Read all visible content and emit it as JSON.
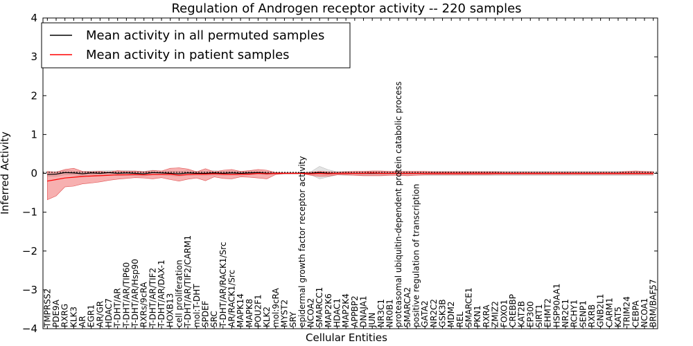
{
  "chart_data": {
    "type": "line",
    "title": "Regulation of Androgen receptor activity -- 220 samples",
    "xlabel": "Cellular Entities",
    "ylabel": "Inferred Activity",
    "ylim": [
      -4,
      4
    ],
    "yticks": [
      "4",
      "3",
      "2",
      "1",
      "0",
      "−1",
      "−2",
      "−3",
      "−4"
    ],
    "legend_position": "top-left",
    "grid": false,
    "categories": [
      "TMPRSS2",
      "PDE9A",
      "RXRG",
      "KLK3",
      "AR",
      "EGR1",
      "AR/GR",
      "HDAC7",
      "T-DHT/AR",
      "T-DHT/AR/TIP60",
      "T-DHT/AR/Hsp90",
      "RXRs/9cRA",
      "T-DHT/AR/TIF2",
      "T-DHT/AR/DAX-1",
      "HOXB13",
      "cell proliferation",
      "T-DHT/AR/TIF2/CARM1",
      "mol:T-DHT",
      "SPDEF",
      "SRC",
      "T-DHT/AR/RACK1/Src",
      "AR/RACK1/Src",
      "MAPK14",
      "MAPK8",
      "POU2F1",
      "KLK2",
      "mol:9cRA",
      "MYST2",
      "SRY",
      "epidermal growth factor receptor activity",
      "NCOA2",
      "SMARCC1",
      "MAP2K6",
      "HDAC1",
      "MAP2K4",
      "APPBP2",
      "DNAJA1",
      "JUN",
      "NR3C1",
      "NR0B1",
      "proteasomal ubiquitin-dependent protein catabolic process",
      "SMARCA2",
      "positive regulation of transcription",
      "GATA2",
      "NR2C2",
      "GSK3B",
      "MDM2",
      "REL",
      "SMARCE1",
      "PKN1",
      "RXRA",
      "ZMIZ2",
      "FOXO1",
      "CREBBP",
      "KAT2B",
      "EP300",
      "SIRT1",
      "EHMT2",
      "HSP90AA1",
      "NR2C1",
      "RCHY1",
      "SENP1",
      "RXRB",
      "GNB2L1",
      "CARM1",
      "KAT5",
      "TRIM24",
      "CEBPA",
      "NCOA1",
      "BRM/BAF57"
    ],
    "series": [
      {
        "name": "Mean activity in all permuted samples",
        "color": "#000000",
        "band_color": "#c8c8c8",
        "values": [
          -0.03,
          -0.02,
          0.02,
          0.01,
          -0.01,
          0.01,
          0.0,
          0.02,
          0.0,
          0.01,
          0.0,
          -0.01,
          0.02,
          0.01,
          0.0,
          -0.01,
          0.01,
          0.0,
          0.0,
          0.01,
          0.0,
          0.01,
          0.0,
          0.01,
          0.02,
          0.0,
          0.0,
          0.0,
          0.0,
          0.0,
          0.0,
          0.02,
          0.0,
          0.0,
          0.0,
          0.0,
          0.0,
          0.0,
          0.0,
          0.0,
          0.0,
          0.0,
          0.0,
          0.0,
          0.0,
          0.0,
          0.0,
          0.0,
          0.0,
          0.0,
          0.0,
          0.0,
          0.0,
          0.0,
          0.0,
          0.0,
          0.0,
          0.0,
          0.0,
          0.0,
          0.0,
          0.0,
          0.0,
          0.0,
          0.0,
          0.0,
          0.0,
          0.0,
          0.0,
          0.0
        ],
        "band_halfwidth": [
          0.05,
          0.06,
          0.06,
          0.05,
          0.06,
          0.05,
          0.06,
          0.05,
          0.06,
          0.06,
          0.06,
          0.06,
          0.06,
          0.05,
          0.06,
          0.06,
          0.06,
          0.05,
          0.05,
          0.06,
          0.05,
          0.05,
          0.05,
          0.05,
          0.04,
          0.04,
          0.02,
          0.01,
          0.01,
          0.01,
          0.04,
          0.16,
          0.09,
          0.04,
          0.05,
          0.05,
          0.05,
          0.05,
          0.05,
          0.05,
          0.05,
          0.05,
          0.05,
          0.05,
          0.05,
          0.05,
          0.05,
          0.05,
          0.05,
          0.05,
          0.05,
          0.05,
          0.05,
          0.05,
          0.05,
          0.05,
          0.05,
          0.05,
          0.05,
          0.05,
          0.05,
          0.05,
          0.05,
          0.05,
          0.05,
          0.05,
          0.05,
          0.05,
          0.05,
          0.05
        ]
      },
      {
        "name": "Mean activity in patient samples",
        "color": "#ff0000",
        "band_color": "#f07070",
        "values": [
          -0.2,
          -0.16,
          -0.12,
          -0.1,
          -0.08,
          -0.07,
          -0.06,
          -0.05,
          -0.04,
          -0.04,
          -0.03,
          -0.04,
          -0.03,
          -0.03,
          -0.02,
          -0.05,
          -0.03,
          -0.02,
          -0.02,
          -0.01,
          -0.02,
          -0.03,
          -0.02,
          -0.02,
          0.0,
          -0.01,
          0.0,
          0.0,
          0.0,
          0.0,
          -0.01,
          0.0,
          -0.01,
          0.0,
          0.0,
          0.0,
          0.0,
          0.01,
          0.0,
          0.0,
          0.0,
          0.0,
          0.0,
          0.0,
          0.0,
          0.0,
          0.0,
          0.0,
          0.0,
          0.0,
          0.0,
          0.0,
          0.0,
          0.0,
          0.0,
          0.0,
          0.0,
          0.0,
          0.0,
          0.0,
          0.0,
          0.0,
          0.0,
          0.0,
          0.0,
          0.0,
          0.0,
          0.0,
          0.0,
          0.0
        ],
        "band_upper": [
          0.05,
          0.03,
          0.1,
          0.13,
          0.05,
          0.04,
          0.05,
          0.03,
          0.07,
          0.05,
          0.06,
          0.04,
          0.07,
          0.06,
          0.13,
          0.14,
          0.11,
          0.04,
          0.12,
          0.04,
          0.08,
          0.1,
          0.05,
          0.07,
          0.1,
          0.08,
          0.02,
          0.01,
          0.01,
          0.01,
          0.03,
          0.05,
          0.04,
          0.03,
          0.04,
          0.05,
          0.05,
          0.06,
          0.06,
          0.05,
          0.05,
          0.05,
          0.05,
          0.05,
          0.04,
          0.04,
          0.04,
          0.04,
          0.04,
          0.04,
          0.04,
          0.04,
          0.03,
          0.03,
          0.03,
          0.03,
          0.03,
          0.03,
          0.03,
          0.03,
          0.03,
          0.03,
          0.03,
          0.03,
          0.03,
          0.03,
          0.05,
          0.06,
          0.05,
          0.04
        ],
        "band_lower": [
          -0.68,
          -0.58,
          -0.35,
          -0.33,
          -0.27,
          -0.25,
          -0.22,
          -0.18,
          -0.15,
          -0.13,
          -0.11,
          -0.12,
          -0.14,
          -0.11,
          -0.16,
          -0.2,
          -0.15,
          -0.12,
          -0.19,
          -0.09,
          -0.13,
          -0.14,
          -0.09,
          -0.1,
          -0.12,
          -0.14,
          -0.03,
          -0.01,
          -0.01,
          -0.01,
          -0.05,
          -0.08,
          -0.07,
          -0.04,
          -0.04,
          -0.05,
          -0.06,
          -0.06,
          -0.06,
          -0.05,
          -0.05,
          -0.06,
          -0.05,
          -0.04,
          -0.04,
          -0.04,
          -0.04,
          -0.04,
          -0.04,
          -0.04,
          -0.04,
          -0.03,
          -0.03,
          -0.03,
          -0.03,
          -0.03,
          -0.03,
          -0.03,
          -0.03,
          -0.03,
          -0.03,
          -0.03,
          -0.03,
          -0.03,
          -0.03,
          -0.03,
          -0.03,
          -0.03,
          -0.03,
          -0.03
        ]
      }
    ]
  }
}
